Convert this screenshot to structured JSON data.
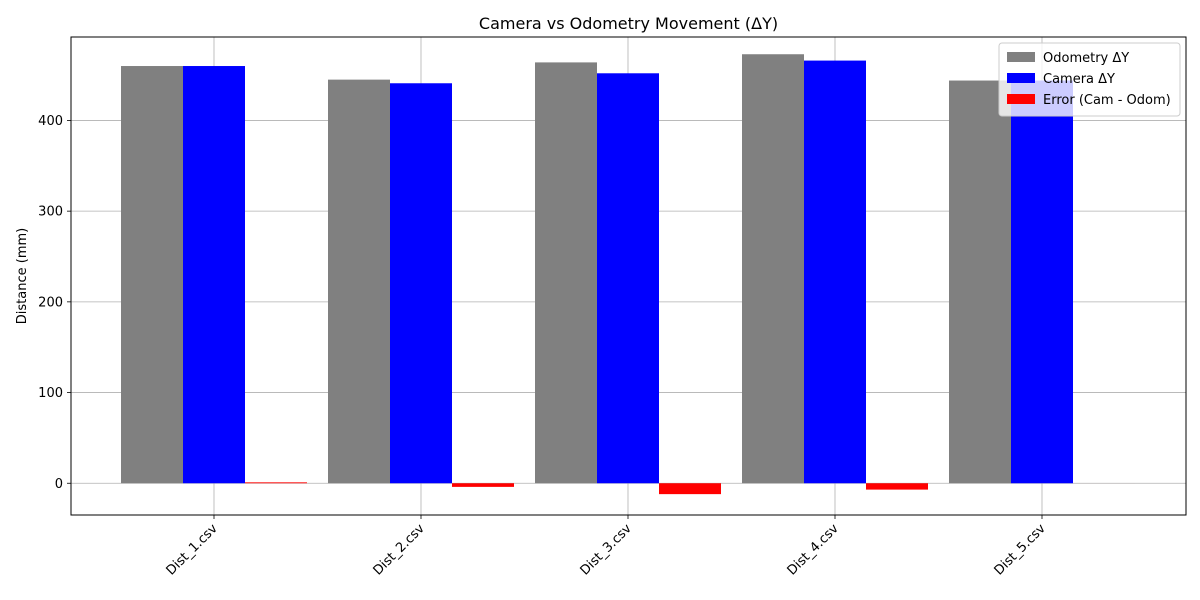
{
  "chart_data": {
    "type": "bar",
    "title": "Camera vs Odometry Movement (ΔY)",
    "xlabel": "",
    "ylabel": "Distance (mm)",
    "categories": [
      "Dist_1.csv",
      "Dist_2.csv",
      "Dist_3.csv",
      "Dist_4.csv",
      "Dist_5.csv"
    ],
    "series": [
      {
        "name": "Odometry ΔY",
        "color": "#808080",
        "values": [
          460,
          445,
          464,
          473,
          444
        ]
      },
      {
        "name": "Camera ΔY",
        "color": "#0000ff",
        "values": [
          460,
          441,
          452,
          466,
          444
        ]
      },
      {
        "name": "Error (Cam - Odom)",
        "color": "#ff0000",
        "values": [
          1,
          -4,
          -12,
          -7,
          0
        ]
      }
    ],
    "ylim": [
      -35,
      492
    ],
    "yticks": [
      0,
      100,
      200,
      300,
      400
    ],
    "grid": true,
    "legend_position": "top-right",
    "xtick_rotation": 45
  }
}
